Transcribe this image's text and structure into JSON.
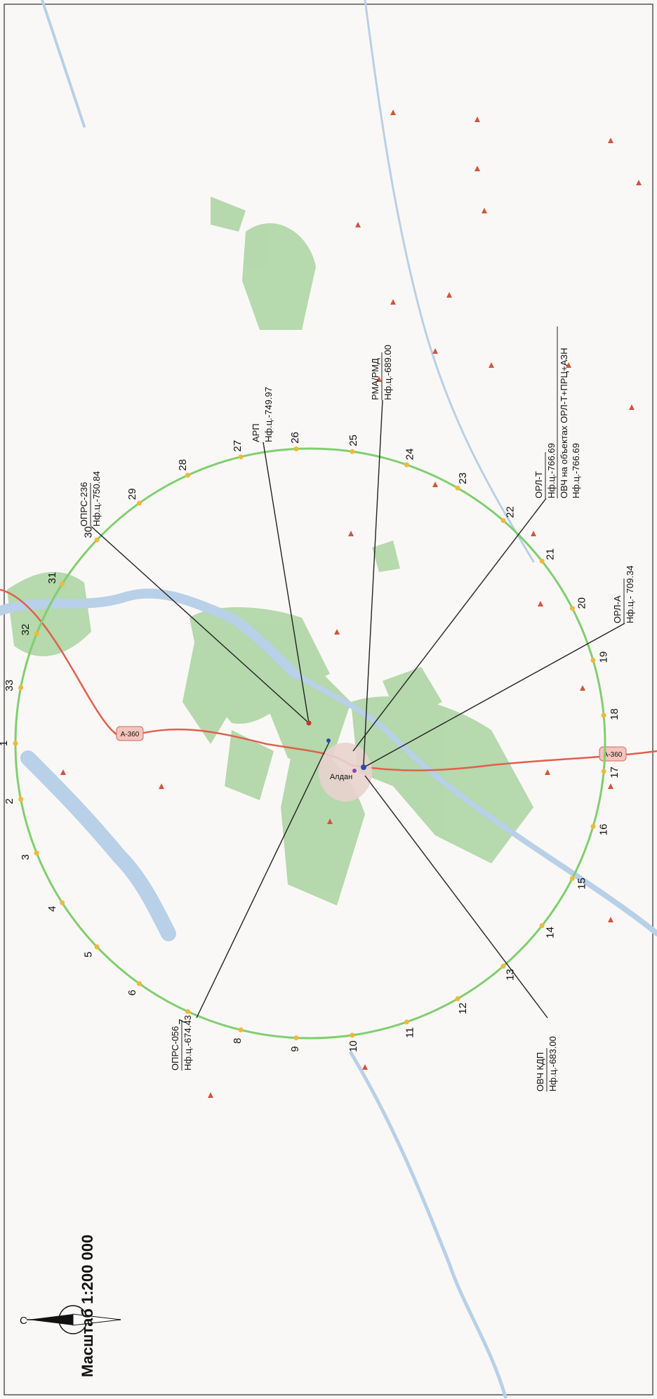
{
  "scale": "Масштаб 1:200 000",
  "north": "С",
  "roads": [
    "А-360",
    "А-360"
  ],
  "town": "Алдан",
  "circle_numbers": [
    "1",
    "2",
    "3",
    "4",
    "5",
    "6",
    "7",
    "8",
    "9",
    "10",
    "11",
    "12",
    "13",
    "14",
    "15",
    "16",
    "17",
    "18",
    "19",
    "20",
    "21",
    "22",
    "23",
    "24",
    "25",
    "26",
    "27",
    "28",
    "29",
    "30",
    "31",
    "32",
    "33"
  ],
  "objects": [
    {
      "name": "ОПРС-236",
      "value": "Нф.ц.-750.84"
    },
    {
      "name": "АРП",
      "value": "Нф.ц.-749.97"
    },
    {
      "name": "РМА/РМД",
      "value": "Нф.ц.-689.00"
    },
    {
      "name": "ОРЛ-Т",
      "value": "Нф.ц.-766.69",
      "extra1": "ОВЧ на объектах ОРЛ-Т+ПРЦ+АЗН",
      "extra2": "Нф.ц.-766.69"
    },
    {
      "name": "ОРЛ-А",
      "value": "Нф.ц.- 709.34"
    },
    {
      "name": "ОВЧ КДП",
      "value": "Нф.ц.-683.00"
    },
    {
      "name": "ОПРС-056",
      "value": "Нф.ц.-674.43"
    }
  ],
  "colors": {
    "forest": "#a9d3a0",
    "water": "#b8d0e8",
    "road": "#e0604a",
    "circle": "#7fcf6f",
    "marker": "#f0b93a",
    "peak": "#d2553a"
  }
}
